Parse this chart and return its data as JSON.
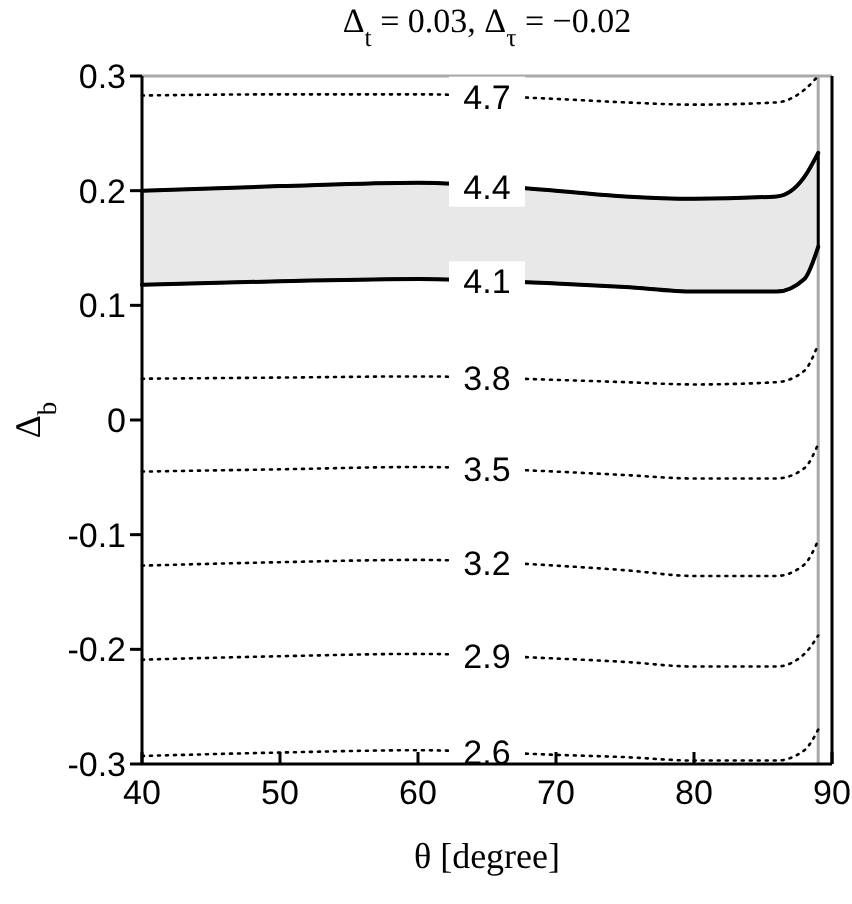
{
  "chart_data": {
    "type": "line",
    "title": "Δ$_{t}$ = 0.03,  Δ$_{τ}$ = −0.02",
    "xlabel": "θ [degree]",
    "ylabel": "Δ$_{b}$",
    "x": [
      40,
      50,
      60,
      70,
      75,
      80,
      86,
      88,
      89
    ],
    "xlim": [
      40,
      90
    ],
    "xticks": [
      40,
      50,
      60,
      70,
      80,
      90
    ],
    "ylim": [
      -0.3,
      0.3
    ],
    "yticks": [
      -0.3,
      -0.2,
      -0.1,
      0,
      0.1,
      0.2,
      0.3
    ],
    "grid": false,
    "marker": "none",
    "ref_lines": [
      {
        "axis": "x",
        "value": 89,
        "color": "#aaaaaa"
      },
      {
        "axis": "y",
        "value": 0.3,
        "color": "#aaaaaa"
      }
    ],
    "series": [
      {
        "name": "4.7",
        "color": "#000000",
        "line_style": "dotted",
        "values": [
          0.283,
          0.284,
          0.284,
          0.28,
          0.277,
          0.275,
          0.277,
          0.288,
          0.3
        ]
      },
      {
        "name": "4.4",
        "color": "#000000",
        "line_style": "solid",
        "values": [
          0.2,
          0.204,
          0.207,
          0.2,
          0.195,
          0.193,
          0.195,
          0.212,
          0.233
        ],
        "lower": [
          0.118,
          0.121,
          0.123,
          0.119,
          0.116,
          0.112,
          0.112,
          0.123,
          0.151
        ],
        "upper": [
          0.2,
          0.204,
          0.207,
          0.2,
          0.195,
          0.193,
          0.195,
          0.212,
          0.233
        ]
      },
      {
        "name": "4.1",
        "color": "#000000",
        "line_style": "solid",
        "values": [
          0.118,
          0.121,
          0.123,
          0.119,
          0.116,
          0.112,
          0.112,
          0.123,
          0.151
        ]
      },
      {
        "name": "3.8",
        "color": "#000000",
        "line_style": "dotted",
        "values": [
          0.036,
          0.037,
          0.038,
          0.035,
          0.033,
          0.031,
          0.033,
          0.043,
          0.066
        ]
      },
      {
        "name": "3.5",
        "color": "#000000",
        "line_style": "dotted",
        "values": [
          -0.045,
          -0.043,
          -0.041,
          -0.045,
          -0.048,
          -0.051,
          -0.051,
          -0.042,
          -0.021
        ]
      },
      {
        "name": "3.2",
        "color": "#000000",
        "line_style": "dotted",
        "values": [
          -0.127,
          -0.124,
          -0.122,
          -0.127,
          -0.131,
          -0.136,
          -0.136,
          -0.126,
          -0.105
        ]
      },
      {
        "name": "2.9",
        "color": "#000000",
        "line_style": "dotted",
        "values": [
          -0.209,
          -0.206,
          -0.204,
          -0.208,
          -0.211,
          -0.215,
          -0.215,
          -0.204,
          -0.188
        ]
      },
      {
        "name": "2.6",
        "color": "#000000",
        "line_style": "dotted",
        "values": [
          -0.293,
          -0.29,
          -0.288,
          -0.292,
          -0.294,
          -0.297,
          -0.297,
          -0.288,
          -0.27
        ]
      }
    ]
  }
}
